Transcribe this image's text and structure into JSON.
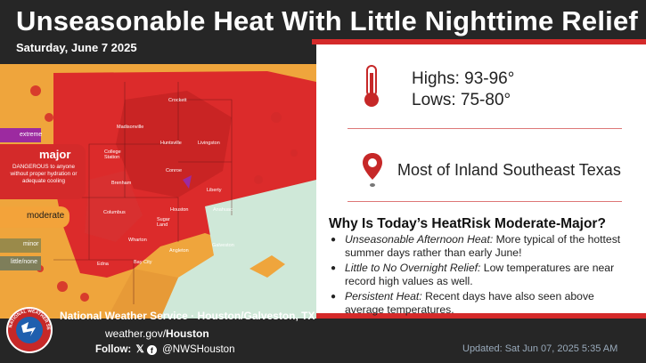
{
  "header": {
    "title": "Unseasonable Heat With Little Nighttime Relief",
    "date": "Saturday, June 7 2025"
  },
  "temps": {
    "highs": "Highs: 93-96°",
    "lows": "Lows: 75-80°"
  },
  "area": "Most of Inland Southeast Texas",
  "why": {
    "heading": "Why Is Today’s HeatRisk Moderate-Major?",
    "bullets": [
      {
        "lead": "Unseasonable Afternoon Heat:",
        "text": " More typical of the hottest summer days rather than early June!"
      },
      {
        "lead": "Little to No Overnight Relief:",
        "text": " Low temperatures are near record high values as well."
      },
      {
        "lead": "Persistent Heat:",
        "text": " Recent days have also seen above average temperatures."
      }
    ]
  },
  "legend": {
    "extreme": "extreme",
    "major": "major",
    "major_desc": "DANGEROUS to anyone without proper hydration or adequate cooling",
    "moderate": "moderate",
    "minor": "minor",
    "little": "little/none"
  },
  "colors": {
    "extreme": "#9c2aa0",
    "major": "#d42a2a",
    "moderate": "#f3a33a",
    "minor": "#9a8a4a",
    "little": "#7e7e5a",
    "accent_red": "#d42a2a",
    "gulf": "#cfe8d8"
  },
  "map_labels": [
    "Crockett",
    "Madisonville",
    "Huntsville",
    "Livingston",
    "College Station",
    "Conroe",
    "Brenham",
    "Liberty",
    "Columbus",
    "Houston",
    "Sugar Land",
    "Anahuac",
    "Wharton",
    "Angleton",
    "Galveston",
    "Edna",
    "Bay City"
  ],
  "footer": {
    "office": "National Weather Service · Houston/Galveston, TX",
    "web_prefix": "weather.gov/",
    "web_bold": "Houston",
    "follow_label": "Follow:",
    "handle": "@NWSHouston",
    "updated": "Updated: Sat Jun 07, 2025 5:35 AM",
    "logo_text": "NATIONAL WEATHER SERVICE"
  }
}
